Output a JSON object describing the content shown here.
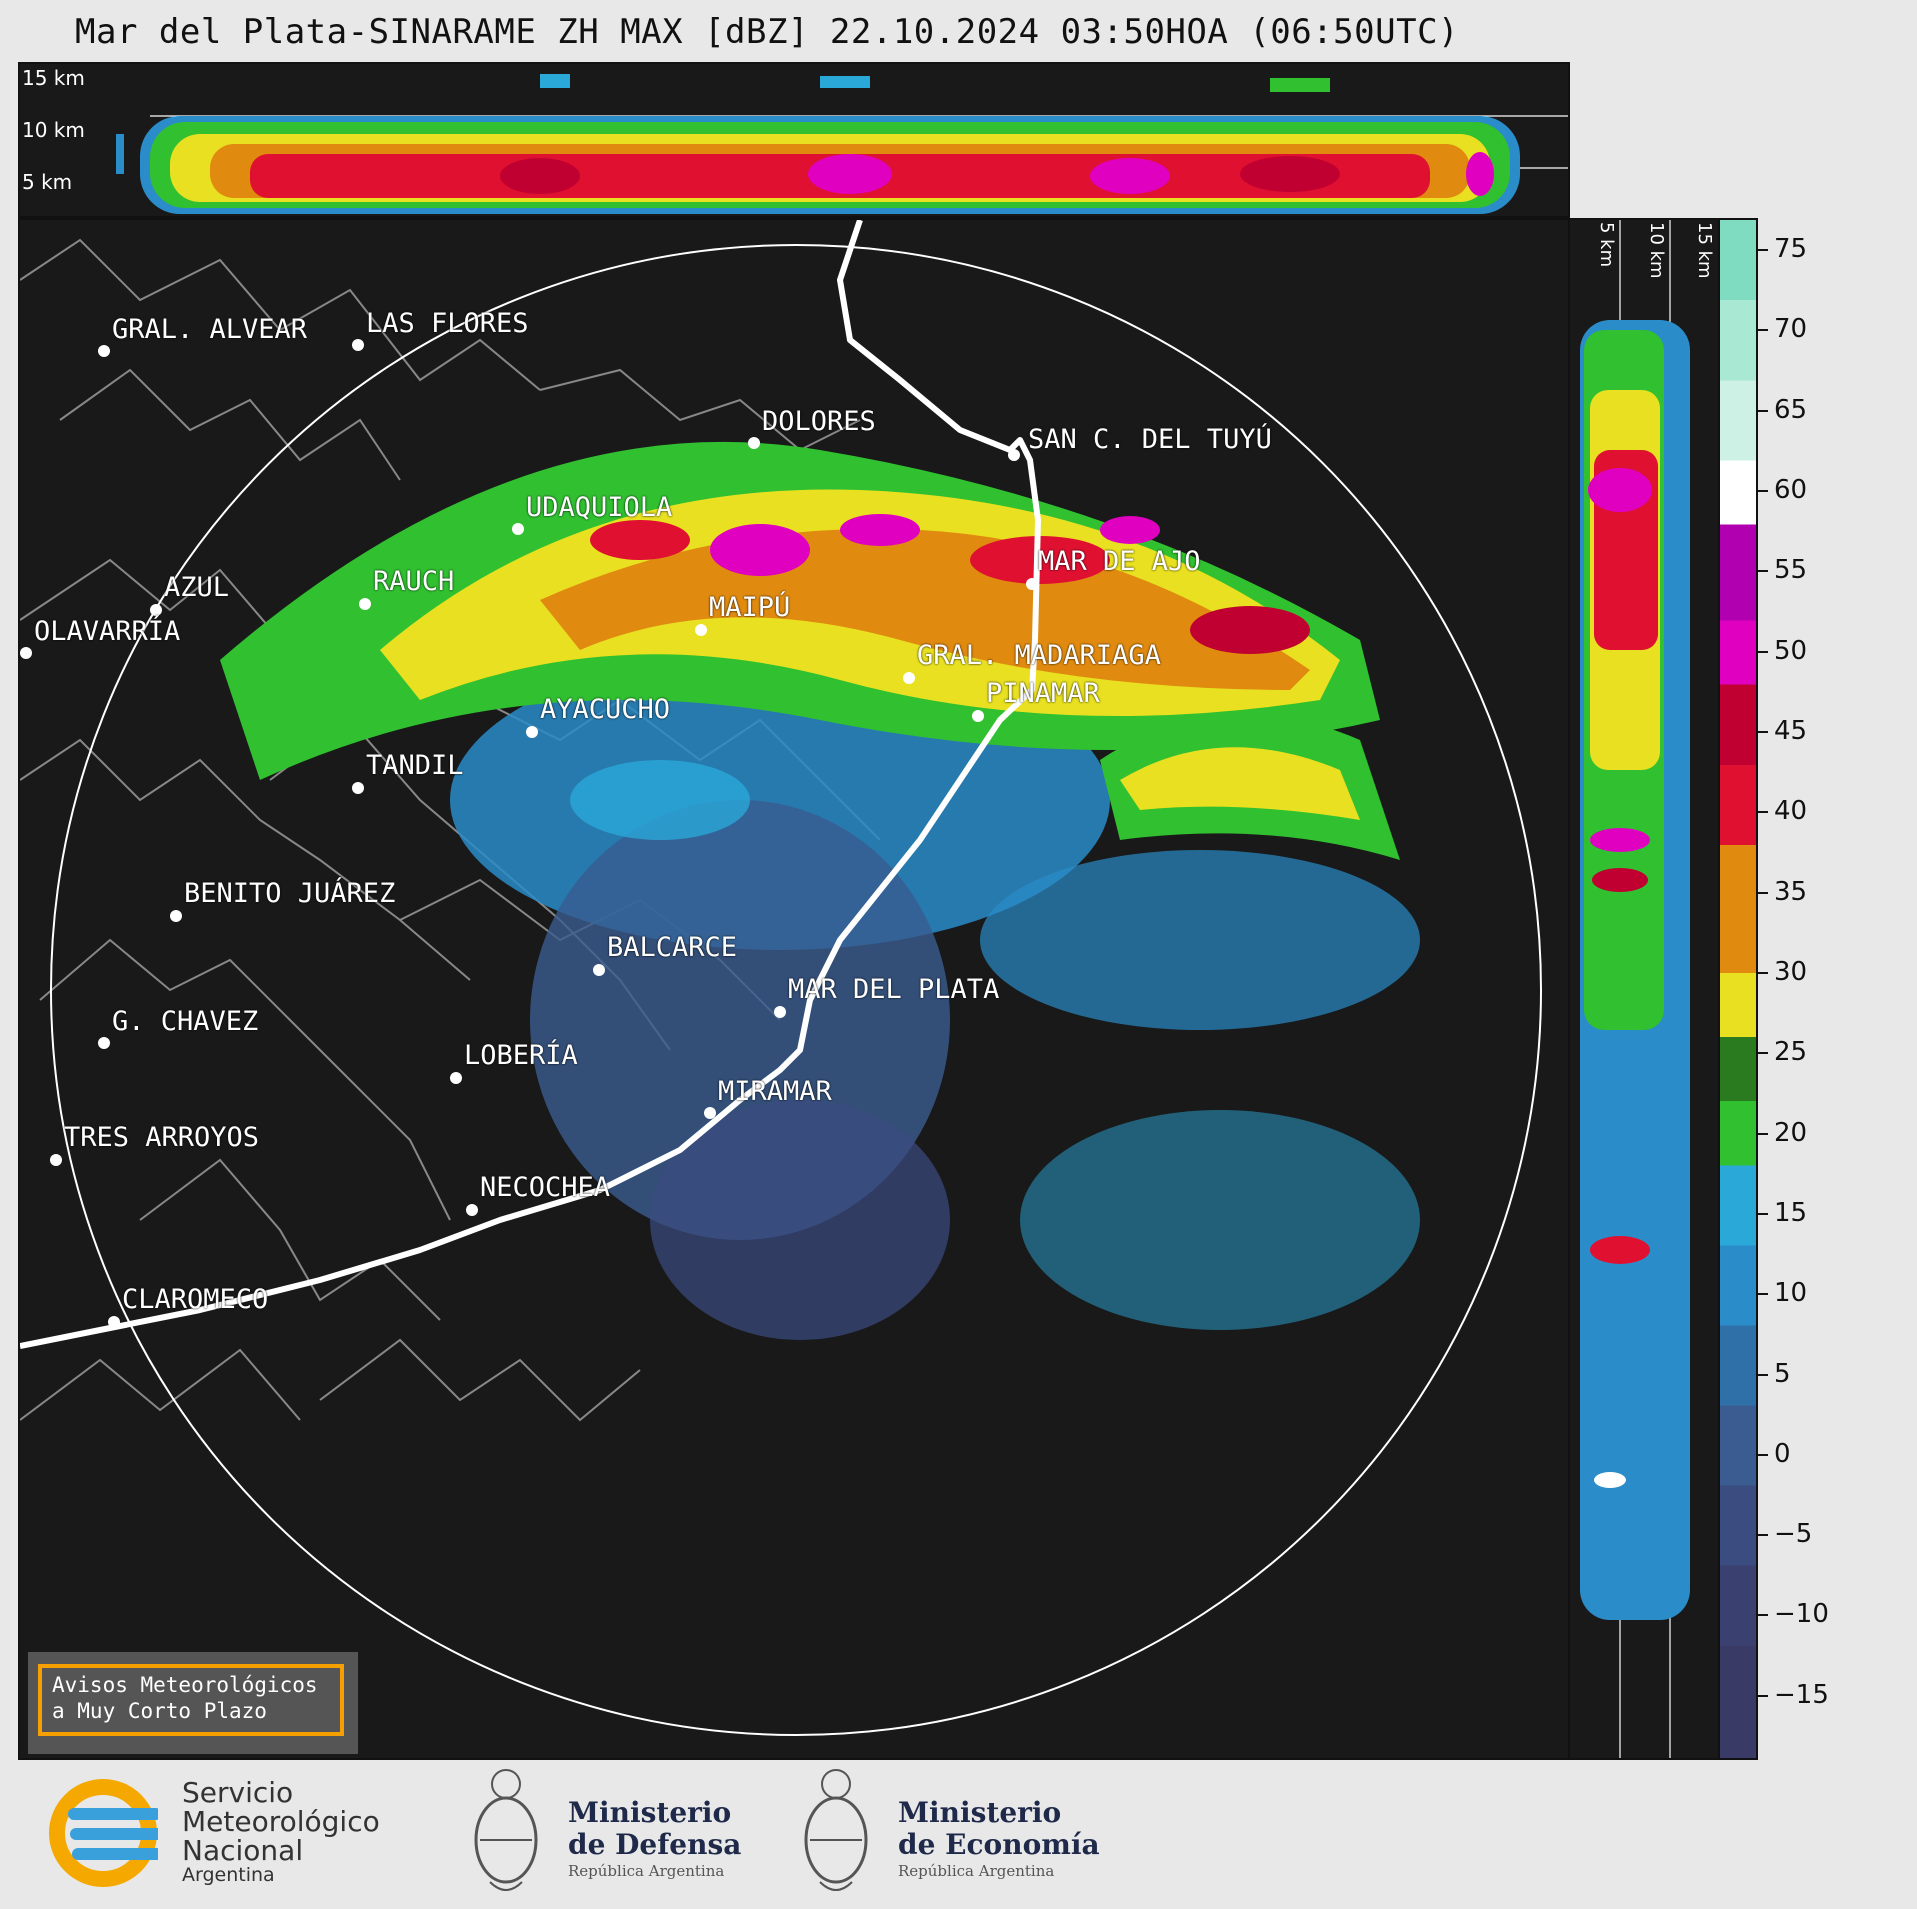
{
  "title": "Mar del Plata-SINARAME ZH MAX [dBZ] 22.10.2024 03:50HOA (06:50UTC)",
  "top_panel": {
    "km_labels": [
      "15 km",
      "10 km",
      "5 km"
    ]
  },
  "side_panel": {
    "km_labels": [
      "5 km",
      "10 km",
      "15 km"
    ]
  },
  "colorbar": {
    "ticks": [
      "75",
      "70",
      "65",
      "60",
      "55",
      "50",
      "45",
      "40",
      "35",
      "30",
      "25",
      "20",
      "15",
      "10",
      "5",
      "0",
      "−5",
      "−10",
      "−15"
    ],
    "colors": {
      "c75": "#7fdcc0",
      "c70": "#a9e8d2",
      "c65": "#cdf1e4",
      "c60": "#ffffff",
      "c55": "#b000b0",
      "c50": "#e000c0",
      "c45": "#c00030",
      "c40": "#e01030",
      "c35": "#e08a10",
      "c30": "#e8e020",
      "c25": "#2a7a20",
      "c20": "#30c030",
      "c15": "#2aa8d8",
      "c10": "#2a8cc8",
      "c5": "#3070a8",
      "c0": "#3a5c90",
      "cm5": "#3a4c80",
      "cm10": "#3a4070",
      "cm15": "#3a3a66"
    }
  },
  "cities": [
    {
      "name": "GRAL. ALVEAR",
      "key": "gral-alvear"
    },
    {
      "name": "LAS FLORES",
      "key": "las-flores"
    },
    {
      "name": "DOLORES",
      "key": "dolores"
    },
    {
      "name": "SAN C. DEL TUYÚ",
      "key": "san-clemente"
    },
    {
      "name": "UDAQUIOLA",
      "key": "udaquiola"
    },
    {
      "name": "MAR DE AJO",
      "key": "mar-de-ajo"
    },
    {
      "name": "AZUL",
      "key": "azul"
    },
    {
      "name": "RAUCH",
      "key": "rauch"
    },
    {
      "name": "MAIPÚ",
      "key": "maipu"
    },
    {
      "name": "OLAVARRÍA",
      "key": "olavarria"
    },
    {
      "name": "GRAL. MADARIAGA",
      "key": "gral-madariaga"
    },
    {
      "name": "PINAMAR",
      "key": "pinamar"
    },
    {
      "name": "AYACUCHO",
      "key": "ayacucho"
    },
    {
      "name": "TANDIL",
      "key": "tandil"
    },
    {
      "name": "BENITO JUÁREZ",
      "key": "benito-juarez"
    },
    {
      "name": "BALCARCE",
      "key": "balcarce"
    },
    {
      "name": "MAR DEL PLATA",
      "key": "mar-del-plata"
    },
    {
      "name": "G. CHAVEZ",
      "key": "g-chavez"
    },
    {
      "name": "LOBERÍA",
      "key": "loberia"
    },
    {
      "name": "MIRAMAR",
      "key": "miramar"
    },
    {
      "name": "TRES ARROYOS",
      "key": "tres-arroyos"
    },
    {
      "name": "NECOCHEA",
      "key": "necochea"
    },
    {
      "name": "CLAROMECO",
      "key": "claromeco"
    }
  ],
  "avisos": {
    "line1": "Avisos Meteorológicos",
    "line2": "a Muy Corto Plazo"
  },
  "logos": {
    "smn": {
      "line1": "Servicio",
      "line2": "Meteorológico",
      "line3": "Nacional",
      "line4": "Argentina"
    },
    "defensa": {
      "line1": "Ministerio",
      "line2": "de Defensa",
      "line3": "República Argentina"
    },
    "economia": {
      "line1": "Ministerio",
      "line2": "de Economía",
      "line3": "República Argentina"
    }
  }
}
